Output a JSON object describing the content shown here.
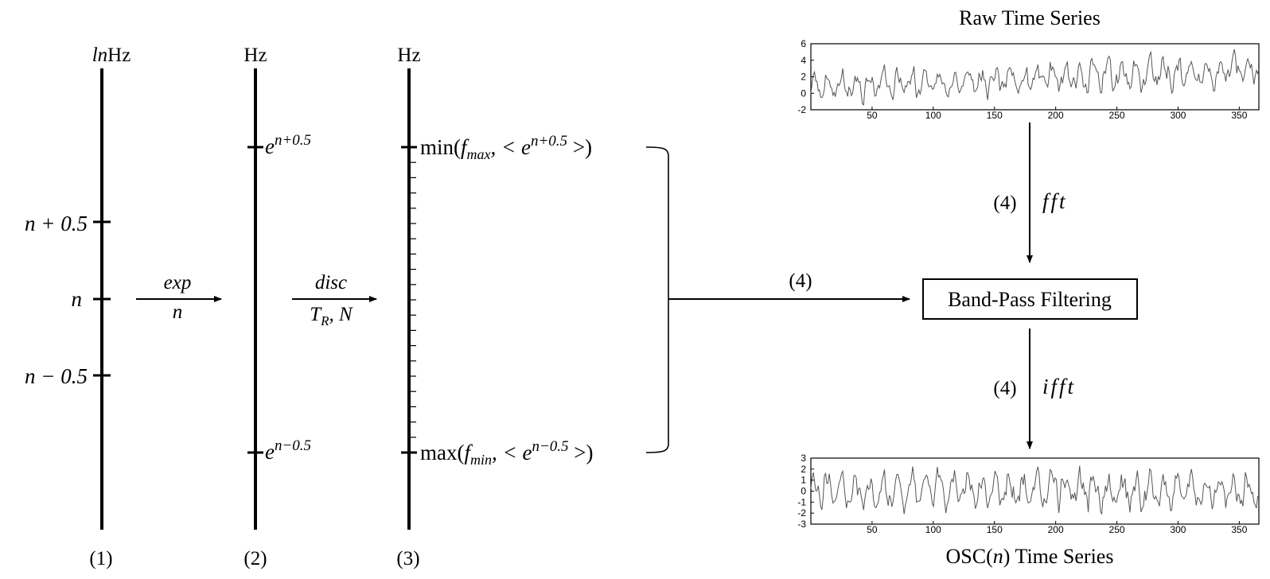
{
  "axes": {
    "axis1": {
      "unit_pre": "ln",
      "unit_post": "Hz",
      "caption": "(1)",
      "ticks": {
        "upper": "n + 0.5",
        "mid": "n",
        "lower": "n − 0.5"
      }
    },
    "axis2": {
      "unit": "Hz",
      "caption": "(2)",
      "upper_base": "e",
      "upper_exp": "n+0.5",
      "lower_base": "e",
      "lower_exp": "n−0.5"
    },
    "axis3": {
      "unit": "Hz",
      "caption": "(3)",
      "upper": {
        "fn": "min(",
        "f": "f",
        "sub": "max",
        "mid": ", < e",
        "exp": "n+0.5",
        "end": " >)"
      },
      "lower": {
        "fn": "max(",
        "f": "f",
        "sub": "min",
        "mid": ", < e",
        "exp": "n−0.5",
        "end": " >)"
      }
    }
  },
  "arrows": {
    "exp": {
      "top": "exp",
      "bottom": "n"
    },
    "disc": {
      "top": "disc",
      "bottom_base": "T",
      "bottom_sub": "R",
      "bottom_rest": ", N"
    },
    "to_filter": {
      "label": "(4)"
    },
    "fft": {
      "step": "(4)",
      "op": "fft"
    },
    "ifft": {
      "step": "(4)",
      "op": "ifft"
    }
  },
  "filter_box": {
    "label": "Band-Pass Filtering"
  },
  "raw_plot": {
    "title": "Raw Time Series",
    "y_ticks": [
      "6",
      "4",
      "2",
      "0",
      "-2"
    ],
    "x_ticks": [
      "50",
      "100",
      "150",
      "200",
      "250",
      "300",
      "350"
    ]
  },
  "osc_plot": {
    "title_pre": "OSC(",
    "title_var": "n",
    "title_post": ") Time Series",
    "y_ticks": [
      "3",
      "2",
      "1",
      "0",
      "-1",
      "-2",
      "-3"
    ],
    "x_ticks": [
      "50",
      "100",
      "150",
      "200",
      "250",
      "300",
      "350"
    ]
  },
  "colors": {
    "ink": "#000000",
    "signal": "#555555"
  }
}
